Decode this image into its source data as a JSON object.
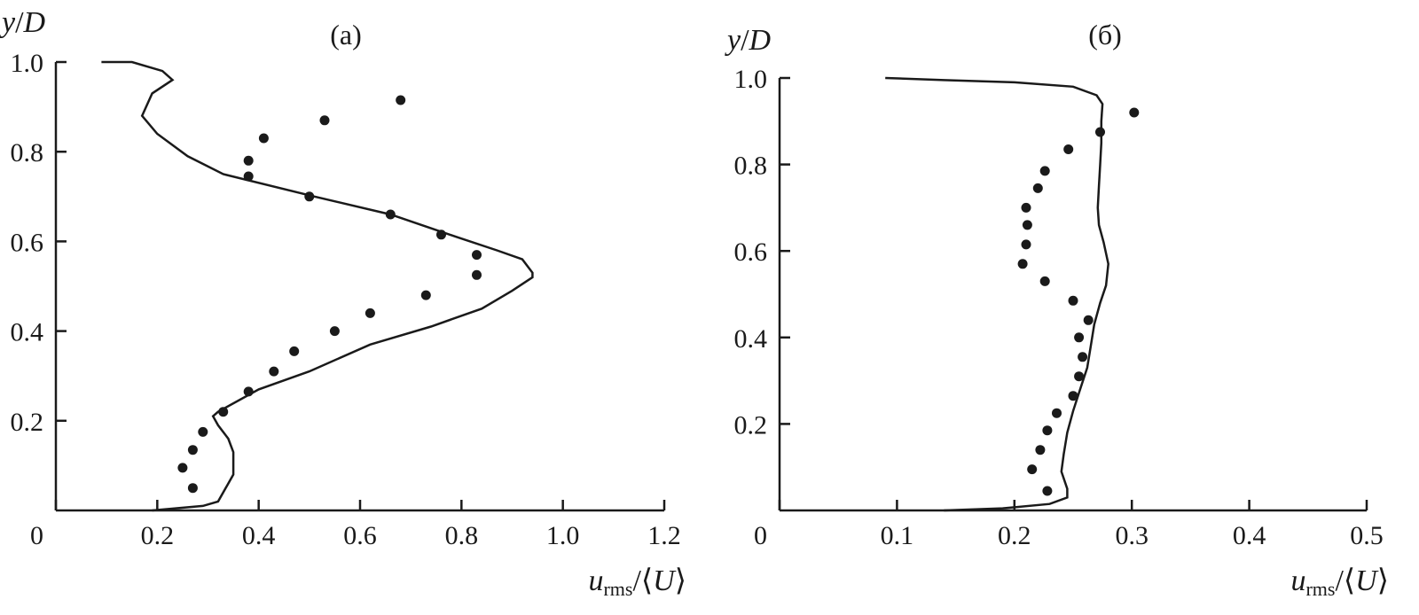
{
  "chart_data": [
    {
      "type": "scatter",
      "title": "(a)",
      "ylabel": "y/D",
      "xlabel": "urms/⟨U⟩",
      "xlim": [
        0,
        1.2
      ],
      "ylim": [
        0,
        1.0
      ],
      "xticks": [
        0,
        0.2,
        0.4,
        0.6,
        0.8,
        1.0,
        1.2
      ],
      "xtick_labels": [
        "0",
        "0.2",
        "0.4",
        "0.6",
        "0.8",
        "1.0",
        "1.2"
      ],
      "yticks": [
        0.2,
        0.4,
        0.6,
        0.8,
        1.0
      ],
      "ytick_labels": [
        "0.2",
        "0.4",
        "0.6",
        "0.8",
        "1.0"
      ],
      "grid": false,
      "series": [
        {
          "kind": "line",
          "points": [
            [
              0.19,
              0.0
            ],
            [
              0.29,
              0.01
            ],
            [
              0.32,
              0.02
            ],
            [
              0.34,
              0.06
            ],
            [
              0.35,
              0.08
            ],
            [
              0.35,
              0.13
            ],
            [
              0.34,
              0.16
            ],
            [
              0.32,
              0.19
            ],
            [
              0.31,
              0.21
            ],
            [
              0.32,
              0.22
            ],
            [
              0.4,
              0.27
            ],
            [
              0.5,
              0.31
            ],
            [
              0.62,
              0.37
            ],
            [
              0.74,
              0.41
            ],
            [
              0.84,
              0.45
            ],
            [
              0.9,
              0.49
            ],
            [
              0.94,
              0.52
            ],
            [
              0.94,
              0.53
            ],
            [
              0.92,
              0.56
            ],
            [
              0.87,
              0.58
            ],
            [
              0.79,
              0.61
            ],
            [
              0.66,
              0.66
            ],
            [
              0.51,
              0.7
            ],
            [
              0.33,
              0.75
            ],
            [
              0.26,
              0.79
            ],
            [
              0.2,
              0.84
            ],
            [
              0.17,
              0.88
            ],
            [
              0.19,
              0.93
            ],
            [
              0.23,
              0.96
            ],
            [
              0.21,
              0.98
            ],
            [
              0.15,
              1.0
            ],
            [
              0.09,
              1.0
            ]
          ]
        },
        {
          "kind": "points",
          "points": [
            [
              0.27,
              0.05
            ],
            [
              0.25,
              0.095
            ],
            [
              0.27,
              0.135
            ],
            [
              0.29,
              0.175
            ],
            [
              0.33,
              0.22
            ],
            [
              0.38,
              0.265
            ],
            [
              0.43,
              0.31
            ],
            [
              0.47,
              0.355
            ],
            [
              0.55,
              0.4
            ],
            [
              0.62,
              0.44
            ],
            [
              0.73,
              0.48
            ],
            [
              0.83,
              0.525
            ],
            [
              0.83,
              0.57
            ],
            [
              0.76,
              0.615
            ],
            [
              0.66,
              0.66
            ],
            [
              0.5,
              0.7
            ],
            [
              0.38,
              0.745
            ],
            [
              0.38,
              0.78
            ],
            [
              0.41,
              0.83
            ],
            [
              0.53,
              0.87
            ],
            [
              0.68,
              0.915
            ]
          ]
        }
      ]
    },
    {
      "type": "scatter",
      "title": "(б)",
      "ylabel": "y/D",
      "xlabel": "urms/⟨U⟩",
      "xlim": [
        0,
        0.5
      ],
      "ylim": [
        0,
        1.0
      ],
      "xticks": [
        0,
        0.1,
        0.2,
        0.3,
        0.4,
        0.5
      ],
      "xtick_labels": [
        "0",
        "0.1",
        "0.2",
        "0.3",
        "0.4",
        "0.5"
      ],
      "yticks": [
        0.2,
        0.4,
        0.6,
        0.8,
        1.0
      ],
      "ytick_labels": [
        "0.2",
        "0.4",
        "0.6",
        "0.8",
        "1.0"
      ],
      "grid": false,
      "series": [
        {
          "kind": "line",
          "points": [
            [
              0.14,
              0.0
            ],
            [
              0.19,
              0.005
            ],
            [
              0.23,
              0.015
            ],
            [
              0.245,
              0.03
            ],
            [
              0.245,
              0.05
            ],
            [
              0.24,
              0.09
            ],
            [
              0.242,
              0.13
            ],
            [
              0.245,
              0.18
            ],
            [
              0.25,
              0.23
            ],
            [
              0.256,
              0.28
            ],
            [
              0.262,
              0.33
            ],
            [
              0.265,
              0.38
            ],
            [
              0.268,
              0.43
            ],
            [
              0.273,
              0.48
            ],
            [
              0.278,
              0.52
            ],
            [
              0.28,
              0.57
            ],
            [
              0.276,
              0.62
            ],
            [
              0.272,
              0.66
            ],
            [
              0.271,
              0.7
            ],
            [
              0.272,
              0.75
            ],
            [
              0.273,
              0.8
            ],
            [
              0.274,
              0.85
            ],
            [
              0.274,
              0.9
            ],
            [
              0.275,
              0.94
            ],
            [
              0.27,
              0.96
            ],
            [
              0.25,
              0.98
            ],
            [
              0.2,
              0.99
            ],
            [
              0.14,
              0.995
            ],
            [
              0.09,
              1.0
            ]
          ]
        },
        {
          "kind": "points",
          "points": [
            [
              0.228,
              0.045
            ],
            [
              0.215,
              0.095
            ],
            [
              0.222,
              0.14
            ],
            [
              0.228,
              0.185
            ],
            [
              0.236,
              0.225
            ],
            [
              0.25,
              0.265
            ],
            [
              0.255,
              0.31
            ],
            [
              0.258,
              0.355
            ],
            [
              0.255,
              0.4
            ],
            [
              0.263,
              0.44
            ],
            [
              0.25,
              0.485
            ],
            [
              0.226,
              0.53
            ],
            [
              0.207,
              0.57
            ],
            [
              0.21,
              0.615
            ],
            [
              0.211,
              0.66
            ],
            [
              0.21,
              0.7
            ],
            [
              0.22,
              0.745
            ],
            [
              0.226,
              0.785
            ],
            [
              0.246,
              0.835
            ],
            [
              0.273,
              0.875
            ],
            [
              0.302,
              0.92
            ]
          ]
        }
      ]
    }
  ]
}
